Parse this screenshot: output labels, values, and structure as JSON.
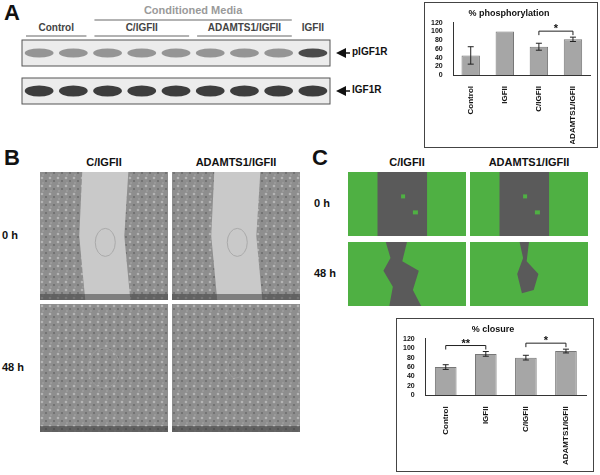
{
  "panel_labels": [
    "A",
    "B",
    "C"
  ],
  "blot": {
    "header": "Conditioned Media",
    "groups": [
      {
        "label": "Control",
        "lanes": 2
      },
      {
        "label": "C/IGFII",
        "lanes": 3
      },
      {
        "label": "ADAMTS1/IGFII",
        "lanes": 3
      },
      {
        "label": "IGFII",
        "lanes": 1
      }
    ],
    "bands": [
      "pIGF1R",
      "IGF1R"
    ]
  },
  "micrographs_B": {
    "columns": [
      "C/IGFII",
      "ADAMTS1/IGFII"
    ],
    "rows": [
      "0 h",
      "48 h"
    ]
  },
  "micrographs_C": {
    "columns": [
      "C/IGFII",
      "ADAMTS1/IGFII"
    ],
    "rows": [
      "0 h",
      "48 h"
    ]
  },
  "chart_data": [
    {
      "type": "bar",
      "title": "% phosphorylation",
      "categories": [
        "Control",
        "IGFII",
        "C/IGFII",
        "ADAMTS1/IGFII"
      ],
      "values": [
        45,
        100,
        65,
        82
      ],
      "errors": [
        20,
        0,
        8,
        5
      ],
      "color": "#a6a6a6",
      "ylim": [
        0,
        120
      ],
      "yticks": [
        0,
        20,
        40,
        60,
        80,
        100,
        120
      ],
      "grid": false,
      "annotations": [
        {
          "between": [
            "C/IGFII",
            "ADAMTS1/IGFII"
          ],
          "text": "*"
        }
      ]
    },
    {
      "type": "bar",
      "title": "% closure",
      "categories": [
        "Control",
        "IGFII",
        "C/IGFII",
        "ADAMTS1/IGFII"
      ],
      "values": [
        60,
        88,
        80,
        94
      ],
      "errors": [
        5,
        5,
        5,
        4
      ],
      "color": "#a6a6a6",
      "ylim": [
        0,
        120
      ],
      "yticks": [
        0,
        20,
        40,
        60,
        80,
        100,
        120
      ],
      "grid": false,
      "annotations": [
        {
          "between": [
            "Control",
            "IGFII"
          ],
          "text": "**"
        },
        {
          "between": [
            "C/IGFII",
            "ADAMTS1/IGFII"
          ],
          "text": "*"
        }
      ]
    }
  ]
}
